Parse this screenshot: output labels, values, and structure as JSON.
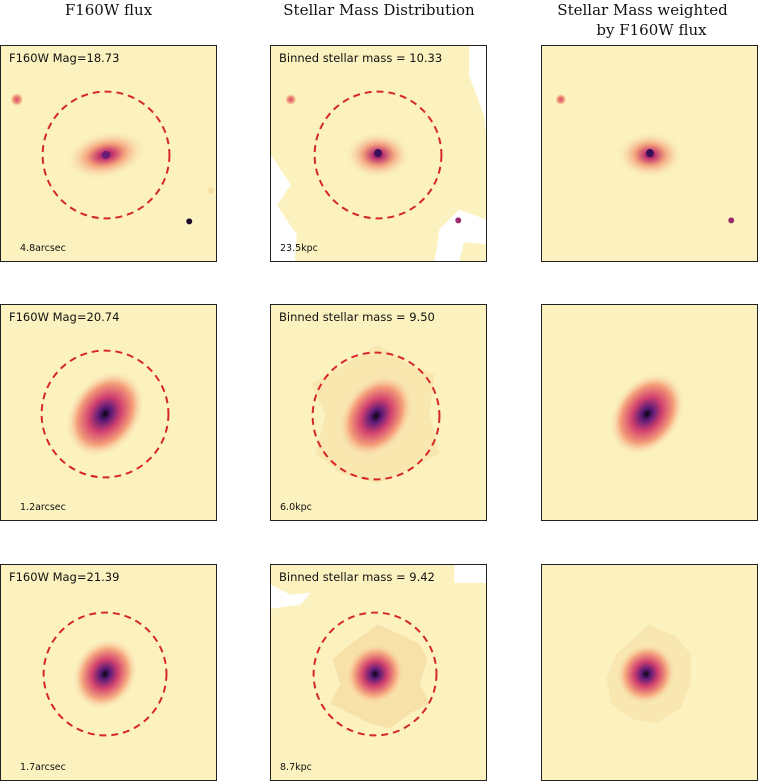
{
  "columns": [
    {
      "title_lines": [
        "F160W flux"
      ]
    },
    {
      "title_lines": [
        "Stellar Mass Distribution"
      ]
    },
    {
      "title_lines": [
        "Stellar Mass weighted",
        "by F160W flux"
      ]
    }
  ],
  "rows": [
    {
      "flux_label": "F160W Mag=18.73",
      "flux_scale": "4.8arcsec",
      "mass_label": "Binned stellar mass = 10.33",
      "mass_scale": "23.5kpc"
    },
    {
      "flux_label": "F160W Mag=20.74",
      "flux_scale": "1.2arcsec",
      "mass_label": "Binned stellar mass = 9.50",
      "mass_scale": "6.0kpc"
    },
    {
      "flux_label": "F160W Mag=21.39",
      "flux_scale": "1.7arcsec",
      "mass_label": "Binned stellar mass = 9.42",
      "mass_scale": "8.7kpc"
    }
  ],
  "colors": {
    "background": "#fbf2bf",
    "circle": "#d62728",
    "core": "#1a0a2e"
  }
}
